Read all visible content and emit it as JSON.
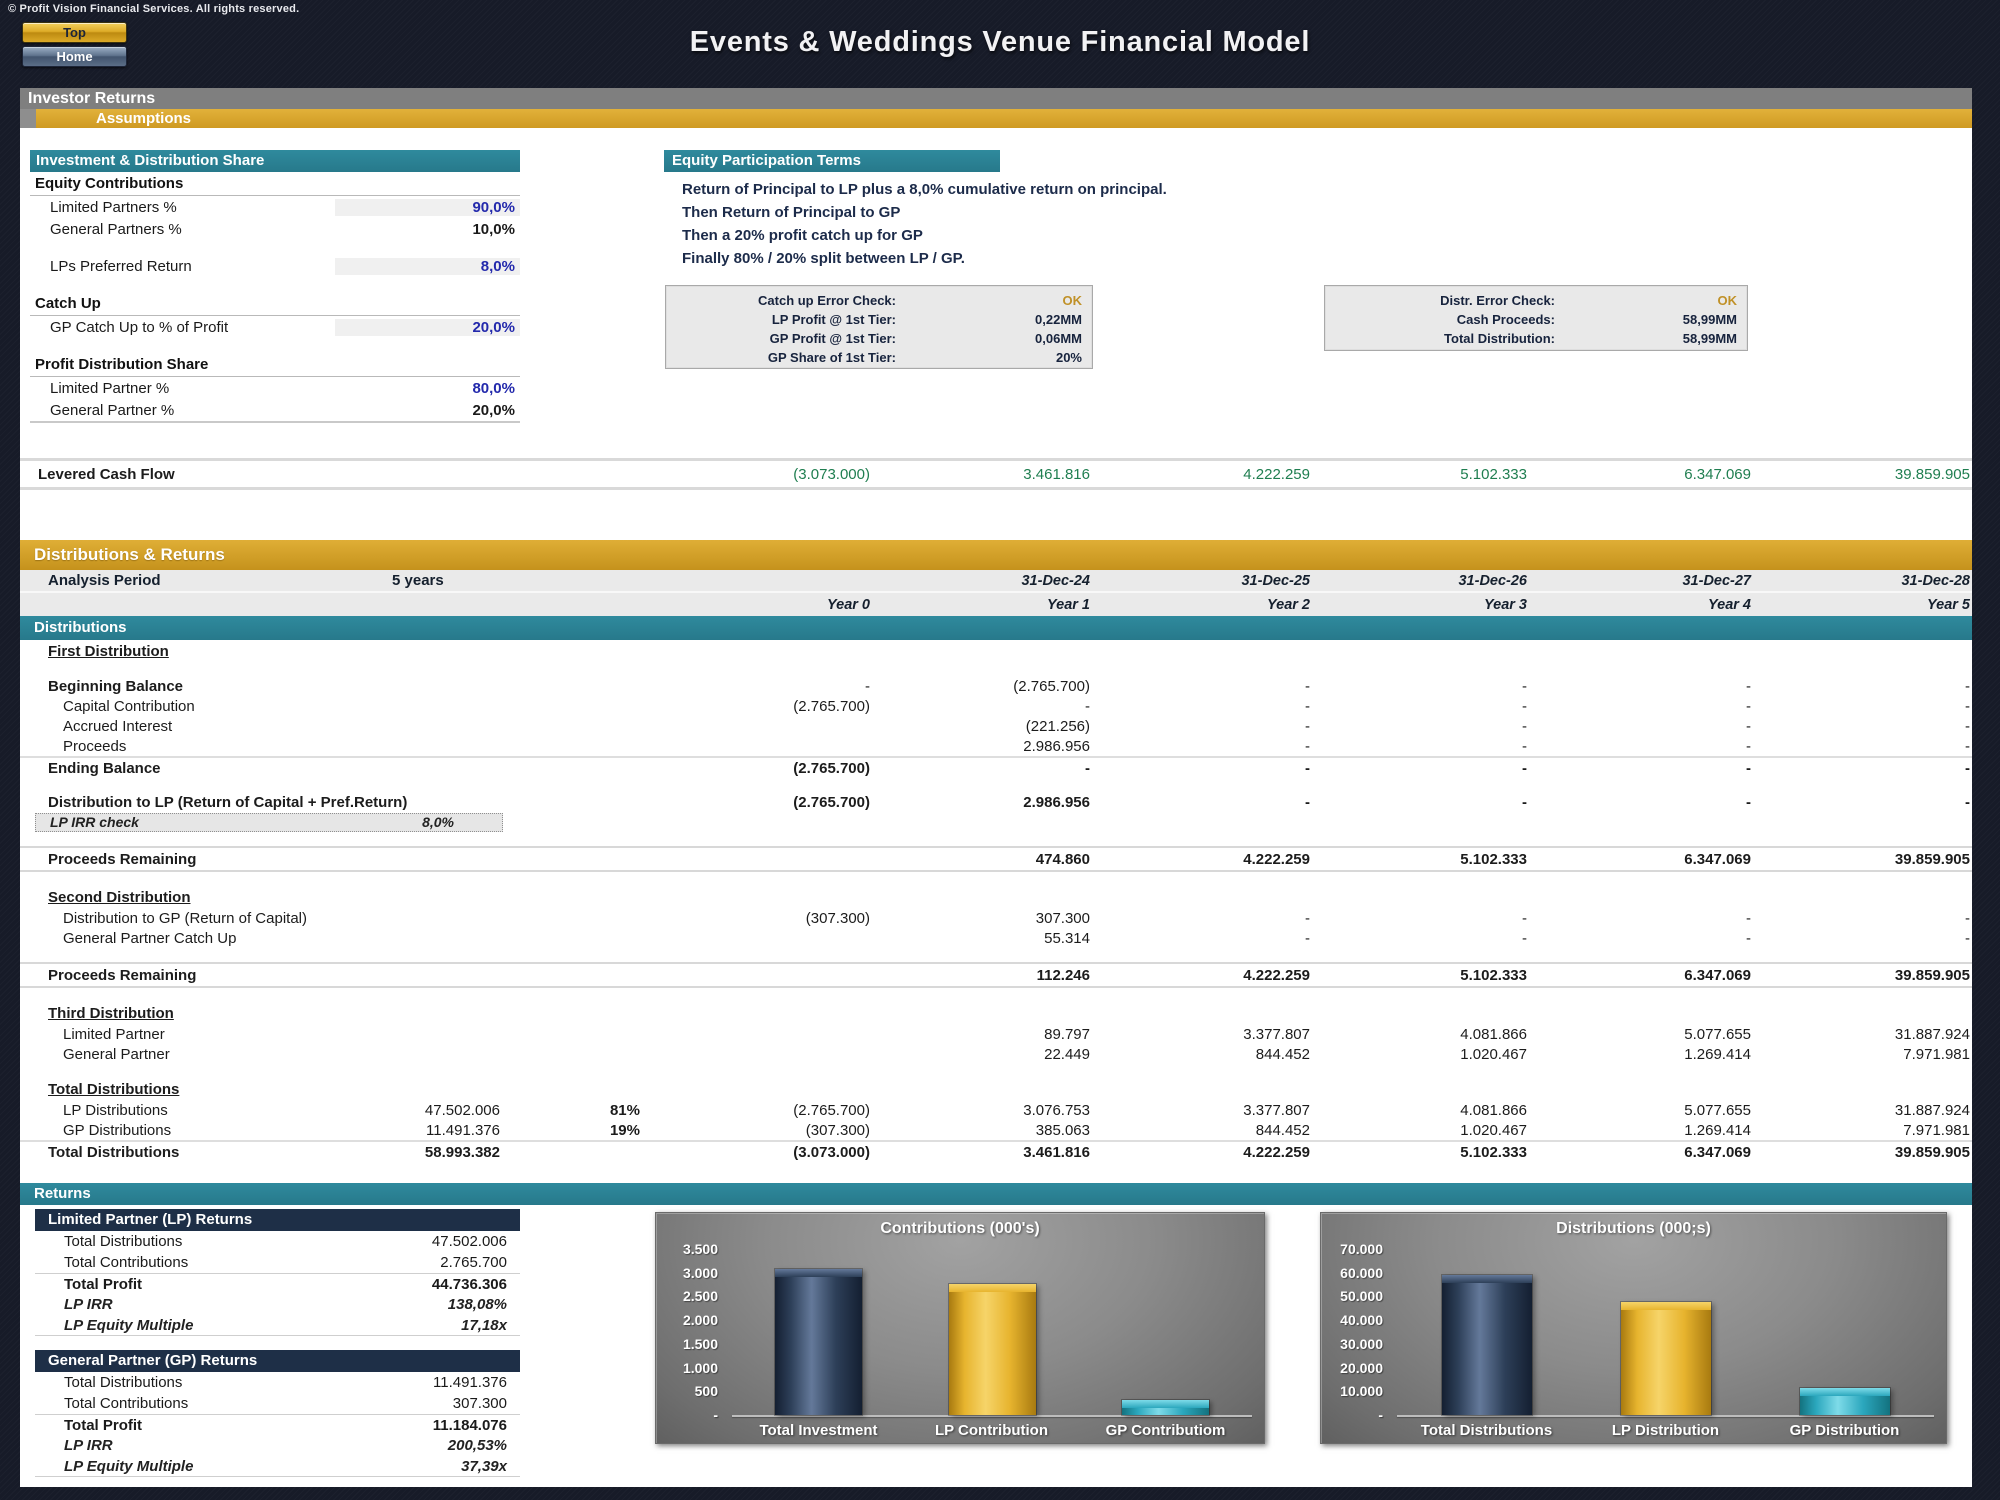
{
  "header": {
    "copyright": "© Profit Vision Financial Services. All rights reserved.",
    "title": "Events & Weddings Venue Financial Model",
    "buttons": {
      "top": "Top",
      "home": "Home"
    }
  },
  "section_bars": {
    "investor_returns": "Investor Returns",
    "assumptions": "Assumptions",
    "investment_share": "Investment & Distribution Share",
    "equity_terms": "Equity Participation Terms",
    "distributions_returns": "Distributions & Returns",
    "distributions": "Distributions",
    "returns": "Returns"
  },
  "assumptions_panel": {
    "rows": [
      {
        "type": "header",
        "label": "Equity Contributions"
      },
      {
        "type": "input",
        "label": "Limited Partners %",
        "value": "90,0%"
      },
      {
        "type": "plain",
        "label": "General Partners %",
        "value": "10,0%"
      },
      {
        "type": "spacer"
      },
      {
        "type": "input",
        "label": "LPs Preferred Return",
        "value": "8,0%"
      },
      {
        "type": "spacer"
      },
      {
        "type": "header",
        "label": "Catch Up"
      },
      {
        "type": "input",
        "label": "GP Catch Up to % of Profit",
        "value": "20,0%"
      },
      {
        "type": "spacer"
      },
      {
        "type": "header",
        "label": "Profit Distribution Share"
      },
      {
        "type": "blue",
        "label": "Limited Partner %",
        "value": "80,0%"
      },
      {
        "type": "plain",
        "label": "General Partner %",
        "value": "20,0%"
      }
    ]
  },
  "equity_terms_lines": [
    "Return of Principal to LP plus a 8,0% cumulative return on principal.",
    "Then Return of Principal to GP",
    "Then a 20% profit catch up for GP",
    "Finally 80% / 20% split between LP / GP."
  ],
  "error_checks": {
    "catch_up": {
      "rows": [
        {
          "label": "Catch up Error Check:",
          "value": "OK"
        },
        {
          "label": "LP Profit @ 1st Tier:",
          "value": "0,22MM"
        },
        {
          "label": "GP Profit @ 1st Tier:",
          "value": "0,06MM"
        },
        {
          "label": "GP Share of 1st Tier:",
          "value": "20%"
        }
      ]
    },
    "distribution": {
      "rows": [
        {
          "label": "Distr. Error Check:",
          "value": "OK"
        },
        {
          "label": "Cash Proceeds:",
          "value": "58,99MM"
        },
        {
          "label": "Total Distribution:",
          "value": "58,99MM"
        }
      ]
    }
  },
  "levered_cash_flow": {
    "label": "Levered Cash Flow",
    "values": [
      "(3.073.000)",
      "3.461.816",
      "4.222.259",
      "5.102.333",
      "6.347.069",
      "39.859.905"
    ]
  },
  "analysis": {
    "label": "Analysis Period",
    "value": "5 years",
    "dates": [
      "31-Dec-24",
      "31-Dec-25",
      "31-Dec-26",
      "31-Dec-27",
      "31-Dec-28"
    ],
    "years": [
      "Year 0",
      "Year 1",
      "Year 2",
      "Year 3",
      "Year 4",
      "Year 5"
    ]
  },
  "distributions_table": {
    "rows": [
      {
        "type": "section",
        "label": "First Distribution"
      },
      {
        "type": "spacer"
      },
      {
        "type": "bold",
        "label": "Beginning Balance",
        "values": [
          "",
          "",
          "-",
          "(2.765.700)",
          "-",
          "-",
          "-",
          "-"
        ]
      },
      {
        "type": "plain",
        "label": "Capital Contribution",
        "values": [
          "",
          "",
          "(2.765.700)",
          "-",
          "-",
          "-",
          "-",
          "-"
        ]
      },
      {
        "type": "plain",
        "label": "Accrued Interest",
        "values": [
          "",
          "",
          "",
          "(221.256)",
          "-",
          "-",
          "-",
          "-"
        ]
      },
      {
        "type": "plain",
        "label": "Proceeds",
        "values": [
          "",
          "",
          "",
          "2.986.956",
          "-",
          "-",
          "-",
          "-"
        ]
      },
      {
        "type": "total",
        "label": "Ending Balance",
        "values": [
          "",
          "",
          "(2.765.700)",
          "-",
          "-",
          "-",
          "-",
          "-"
        ]
      },
      {
        "type": "spacer"
      },
      {
        "type": "boldv",
        "label": "Distribution to LP (Return of Capital + Pref.Return)",
        "values": [
          "",
          "",
          "(2.765.700)",
          "2.986.956",
          "-",
          "-",
          "-",
          "-"
        ]
      },
      {
        "type": "irr",
        "label": "LP IRR check",
        "value": "8,0%"
      },
      {
        "type": "spacer"
      },
      {
        "type": "proceeds",
        "label": "Proceeds Remaining",
        "values": [
          "",
          "",
          "",
          "474.860",
          "4.222.259",
          "5.102.333",
          "6.347.069",
          "39.859.905"
        ]
      },
      {
        "type": "spacer"
      },
      {
        "type": "section",
        "label": "Second Distribution"
      },
      {
        "type": "plain",
        "label": "Distribution to GP (Return of Capital)",
        "values": [
          "",
          "",
          "(307.300)",
          "307.300",
          "-",
          "-",
          "-",
          "-"
        ]
      },
      {
        "type": "plain",
        "label": "General Partner Catch Up",
        "values": [
          "",
          "",
          "",
          "55.314",
          "-",
          "-",
          "-",
          "-"
        ]
      },
      {
        "type": "spacer"
      },
      {
        "type": "proceeds",
        "label": "Proceeds Remaining",
        "values": [
          "",
          "",
          "",
          "112.246",
          "4.222.259",
          "5.102.333",
          "6.347.069",
          "39.859.905"
        ]
      },
      {
        "type": "spacer"
      },
      {
        "type": "section",
        "label": "Third Distribution"
      },
      {
        "type": "plain",
        "label": "Limited Partner",
        "values": [
          "",
          "",
          "",
          "89.797",
          "3.377.807",
          "4.081.866",
          "5.077.655",
          "31.887.924"
        ]
      },
      {
        "type": "plain",
        "label": "General Partner",
        "values": [
          "",
          "",
          "",
          "22.449",
          "844.452",
          "1.020.467",
          "1.269.414",
          "7.971.981"
        ]
      },
      {
        "type": "spacer"
      },
      {
        "type": "section",
        "label": "Total Distributions"
      },
      {
        "type": "plain",
        "label": "LP Distributions",
        "values": [
          "47.502.006",
          "81%",
          "(2.765.700)",
          "3.076.753",
          "3.377.807",
          "4.081.866",
          "5.077.655",
          "31.887.924"
        ]
      },
      {
        "type": "plain",
        "label": "GP Distributions",
        "values": [
          "11.491.376",
          "19%",
          "(307.300)",
          "385.063",
          "844.452",
          "1.020.467",
          "1.269.414",
          "7.971.981"
        ]
      },
      {
        "type": "total",
        "label": "Total Distributions",
        "values": [
          "58.993.382",
          "",
          "(3.073.000)",
          "3.461.816",
          "4.222.259",
          "5.102.333",
          "6.347.069",
          "39.859.905"
        ]
      }
    ]
  },
  "returns_section": {
    "lp": {
      "header": "Limited Partner (LP) Returns",
      "rows": [
        {
          "type": "plain",
          "label": "Total Distributions",
          "value": "47.502.006"
        },
        {
          "type": "plain",
          "label": "Total Contributions",
          "value": "2.765.700"
        },
        {
          "type": "bold",
          "label": "Total Profit",
          "value": "44.736.306"
        },
        {
          "type": "italic",
          "label": "LP IRR",
          "value": "138,08%"
        },
        {
          "type": "italic",
          "label": "LP Equity Multiple",
          "value": "17,18x"
        }
      ]
    },
    "gp": {
      "header": "General Partner (GP) Returns",
      "rows": [
        {
          "type": "plain",
          "label": "Total Distributions",
          "value": "11.491.376"
        },
        {
          "type": "plain",
          "label": "Total Contributions",
          "value": "307.300"
        },
        {
          "type": "bold",
          "label": "Total Profit",
          "value": "11.184.076"
        },
        {
          "type": "italic",
          "label": "LP IRR",
          "value": "200,53%"
        },
        {
          "type": "italic",
          "label": "LP Equity Multiple",
          "value": "37,39x"
        }
      ]
    }
  },
  "chart_data": [
    {
      "type": "bar",
      "title": "Contributions (000's)",
      "categories": [
        "Total Investment",
        "LP Contribution",
        "GP Contributiom"
      ],
      "values": [
        3073,
        2766,
        307
      ],
      "ylim": [
        0,
        3500
      ],
      "yticks": [
        "3.500",
        "3.000",
        "2.500",
        "2.000",
        "1.500",
        "1.000",
        "500",
        "-"
      ],
      "grid": false,
      "legend": "none",
      "colors": [
        {
          "light": "#64799a",
          "base": "#2d3f58",
          "dark": "#141f31"
        },
        {
          "light": "#f6d469",
          "base": "#e7b42e",
          "dark": "#a87a10"
        },
        {
          "light": "#7edbe9",
          "base": "#2ba7bd",
          "dark": "#13727f"
        }
      ]
    },
    {
      "type": "bar",
      "title": "Distributions (000;s)",
      "categories": [
        "Total Distributions",
        "LP Distribution",
        "GP Distribution"
      ],
      "values": [
        58993,
        47502,
        11491
      ],
      "ylim": [
        0,
        70000
      ],
      "yticks": [
        "70.000",
        "60.000",
        "50.000",
        "40.000",
        "30.000",
        "20.000",
        "10.000",
        "-"
      ],
      "grid": false,
      "legend": "none",
      "colors": [
        {
          "light": "#64799a",
          "base": "#2d3f58",
          "dark": "#141f31"
        },
        {
          "light": "#f6d469",
          "base": "#e7b42e",
          "dark": "#a87a10"
        },
        {
          "light": "#7edbe9",
          "base": "#2ba7bd",
          "dark": "#13727f"
        }
      ]
    }
  ],
  "palette": {
    "navy_bg": "#171b28",
    "gold_bar": "#d1a02a",
    "teal_bar": "#2b8396",
    "gray_bar": "#7f7f7f",
    "panel_header_navy": "#1e2f47",
    "input_blue_text": "#2329ac",
    "cashflow_green": "#1f7e50",
    "ok_gold": "#c09128"
  }
}
